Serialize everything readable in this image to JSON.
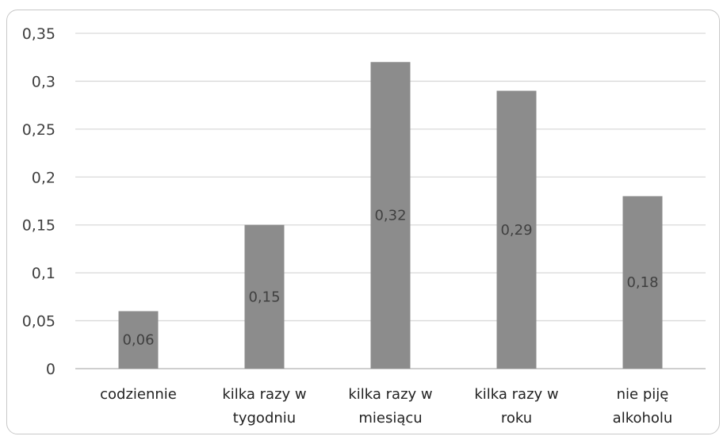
{
  "chart_data": {
    "type": "bar",
    "categories": [
      [
        "codziennie"
      ],
      [
        "kilka razy w",
        "tygodniu"
      ],
      [
        "kilka razy w",
        "miesiącu"
      ],
      [
        "kilka razy w",
        "roku"
      ],
      [
        "nie piję",
        "alkoholu"
      ]
    ],
    "values": [
      0.06,
      0.15,
      0.32,
      0.29,
      0.18
    ],
    "data_labels": [
      "0,06",
      "0,15",
      "0,32",
      "0,29",
      "0,18"
    ],
    "y_ticks": [
      "0",
      "0,05",
      "0,1",
      "0,15",
      "0,2",
      "0,25",
      "0,3",
      "0,35"
    ],
    "ylim": [
      0,
      0.35
    ],
    "grid": true,
    "legend": "none",
    "bar_color": "#8c8c8c",
    "grid_color": "#d9d9d9",
    "axis_color": "#bfbfbf"
  }
}
